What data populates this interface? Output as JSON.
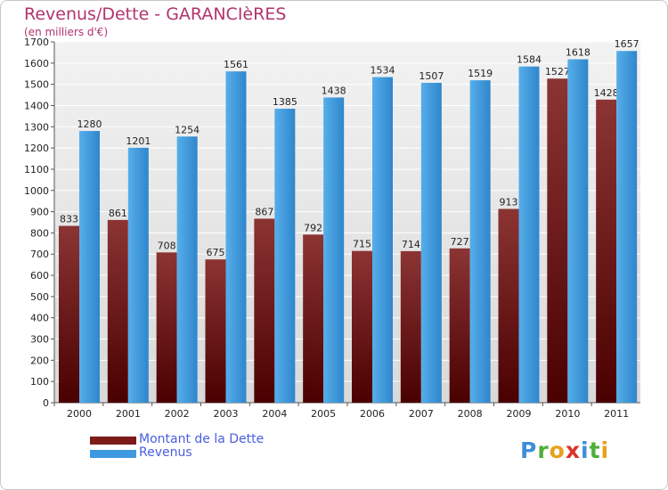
{
  "header": {
    "title": "Revenus/Dette - GARANCIèRES",
    "subtitle": "(en milliers d'€)"
  },
  "chart_data": {
    "type": "bar",
    "categories": [
      "2000",
      "2001",
      "2002",
      "2003",
      "2004",
      "2005",
      "2006",
      "2007",
      "2008",
      "2009",
      "2010",
      "2011"
    ],
    "series": [
      {
        "name": "Montant de la Dette",
        "color": "#7d1a1a",
        "values": [
          833,
          861,
          708,
          675,
          867,
          792,
          715,
          714,
          727,
          913,
          1527,
          1428
        ]
      },
      {
        "name": "Revenus",
        "color": "#3d9ae0",
        "values": [
          1280,
          1201,
          1254,
          1561,
          1385,
          1438,
          1534,
          1507,
          1519,
          1584,
          1618,
          1657
        ]
      }
    ],
    "y_ticks": [
      0,
      100,
      200,
      300,
      400,
      500,
      600,
      700,
      800,
      900,
      1000,
      1100,
      1200,
      1300,
      1400,
      1500,
      1600,
      1700
    ],
    "ylim": [
      0,
      1700
    ],
    "grid": true,
    "legend_position": "bottom-left"
  },
  "legend": {
    "items": [
      {
        "label": "Montant de la Dette",
        "color": "#7d1a1a"
      },
      {
        "label": "Revenus",
        "color": "#3d9ae0"
      }
    ]
  },
  "logo": {
    "text": "Proxiti",
    "letters": [
      {
        "ch": "P",
        "color": "#3f8fd8"
      },
      {
        "ch": "r",
        "color": "#4fae3a"
      },
      {
        "ch": "o",
        "color": "#e8a11c"
      },
      {
        "ch": "x",
        "color": "#d9332b"
      },
      {
        "ch": "i",
        "color": "#3f8fd8"
      },
      {
        "ch": "t",
        "color": "#4fae3a"
      },
      {
        "ch": "i",
        "color": "#e8a11c"
      }
    ]
  }
}
